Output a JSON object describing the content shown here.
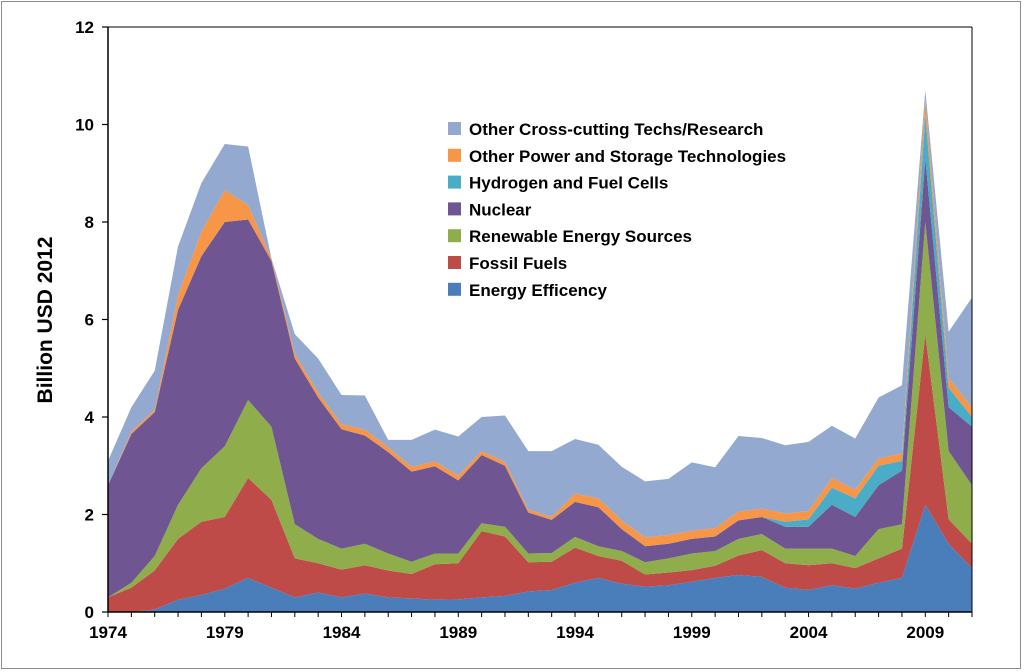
{
  "chart_data": {
    "type": "area",
    "stacked": true,
    "title": "",
    "xlabel": "",
    "ylabel": "Billion USD 2012",
    "ylim": [
      0,
      12
    ],
    "yticks": [
      0,
      2,
      4,
      6,
      8,
      10,
      12
    ],
    "xlim": [
      1974,
      2011
    ],
    "xticks": [
      1974,
      1979,
      1984,
      1989,
      1994,
      1999,
      2004,
      2009
    ],
    "grid": false,
    "legend_position": "top-center",
    "x": [
      1974,
      1975,
      1976,
      1977,
      1978,
      1979,
      1980,
      1981,
      1982,
      1983,
      1984,
      1985,
      1986,
      1987,
      1988,
      1989,
      1990,
      1991,
      1992,
      1993,
      1994,
      1995,
      1996,
      1997,
      1998,
      1999,
      2000,
      2001,
      2002,
      2003,
      2004,
      2005,
      2006,
      2007,
      2008,
      2009,
      2010,
      2011
    ],
    "series": [
      {
        "name": "Energy Efficency",
        "color": "#4a7ebb",
        "values": [
          0.0,
          0.0,
          0.05,
          0.25,
          0.35,
          0.48,
          0.7,
          0.5,
          0.3,
          0.4,
          0.3,
          0.38,
          0.3,
          0.28,
          0.25,
          0.26,
          0.3,
          0.33,
          0.42,
          0.45,
          0.6,
          0.7,
          0.58,
          0.52,
          0.55,
          0.62,
          0.7,
          0.76,
          0.72,
          0.5,
          0.45,
          0.55,
          0.48,
          0.6,
          0.7,
          2.2,
          1.4,
          0.9
        ]
      },
      {
        "name": "Fossil Fuels",
        "color": "#be4b48",
        "values": [
          0.3,
          0.5,
          0.8,
          1.25,
          1.5,
          1.47,
          2.05,
          1.8,
          0.8,
          0.6,
          0.57,
          0.58,
          0.55,
          0.5,
          0.73,
          0.74,
          1.36,
          1.22,
          0.6,
          0.58,
          0.72,
          0.45,
          0.47,
          0.25,
          0.26,
          0.24,
          0.25,
          0.4,
          0.55,
          0.5,
          0.51,
          0.45,
          0.42,
          0.5,
          0.6,
          3.5,
          0.5,
          0.5
        ]
      },
      {
        "name": "Renewable Energy Sources",
        "color": "#8fae4b",
        "values": [
          0.0,
          0.1,
          0.3,
          0.7,
          1.1,
          1.45,
          1.6,
          1.5,
          0.7,
          0.5,
          0.43,
          0.44,
          0.35,
          0.25,
          0.22,
          0.2,
          0.16,
          0.2,
          0.18,
          0.18,
          0.22,
          0.2,
          0.2,
          0.25,
          0.29,
          0.34,
          0.3,
          0.34,
          0.33,
          0.3,
          0.34,
          0.3,
          0.25,
          0.6,
          0.5,
          2.3,
          1.4,
          1.2
        ]
      },
      {
        "name": "Nuclear",
        "color": "#6f5592",
        "values": [
          2.3,
          3.05,
          2.95,
          4.0,
          4.35,
          4.6,
          3.7,
          3.4,
          3.4,
          2.9,
          2.45,
          2.22,
          2.08,
          1.85,
          1.79,
          1.5,
          1.4,
          1.25,
          0.84,
          0.68,
          0.72,
          0.8,
          0.45,
          0.33,
          0.3,
          0.3,
          0.3,
          0.38,
          0.35,
          0.45,
          0.45,
          0.9,
          0.8,
          0.9,
          1.1,
          1.3,
          0.9,
          1.2
        ]
      },
      {
        "name": "Hydrogen and Fuel Cells",
        "color": "#4aacc6",
        "values": [
          0,
          0,
          0,
          0,
          0,
          0,
          0,
          0,
          0,
          0,
          0,
          0,
          0,
          0,
          0,
          0,
          0,
          0,
          0,
          0,
          0,
          0,
          0,
          0,
          0,
          0,
          0,
          0,
          0,
          0.1,
          0.15,
          0.35,
          0.38,
          0.4,
          0.2,
          0.9,
          0.4,
          0.2
        ]
      },
      {
        "name": "Other Power and Storage Technologies",
        "color": "#f79646",
        "values": [
          0.0,
          0.05,
          0.05,
          0.3,
          0.5,
          0.65,
          0.3,
          0.05,
          0.1,
          0.1,
          0.1,
          0.12,
          0.1,
          0.1,
          0.1,
          0.1,
          0.08,
          0.08,
          0.06,
          0.06,
          0.17,
          0.18,
          0.18,
          0.18,
          0.18,
          0.17,
          0.17,
          0.18,
          0.17,
          0.17,
          0.17,
          0.2,
          0.18,
          0.15,
          0.15,
          0.3,
          0.2,
          0.2
        ]
      },
      {
        "name": "Other Cross-cutting Techs/Research",
        "color": "#93a9d0",
        "values": [
          0.5,
          0.5,
          0.8,
          1.0,
          1.0,
          0.95,
          1.2,
          0.0,
          0.4,
          0.7,
          0.6,
          0.7,
          0.15,
          0.55,
          0.65,
          0.8,
          0.7,
          0.95,
          1.2,
          1.35,
          1.12,
          1.1,
          1.1,
          1.15,
          1.15,
          1.4,
          1.25,
          1.55,
          1.45,
          1.4,
          1.42,
          1.07,
          1.05,
          1.25,
          1.4,
          0.2,
          0.95,
          2.25
        ]
      }
    ]
  }
}
